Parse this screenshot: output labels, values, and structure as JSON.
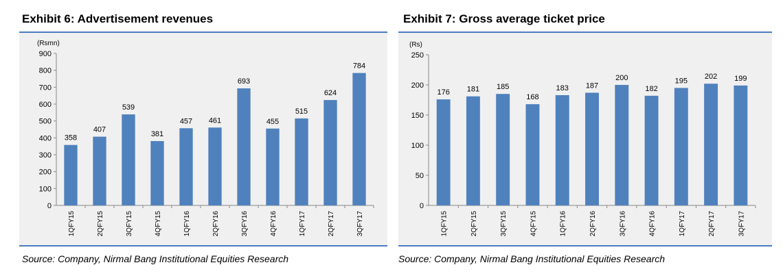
{
  "chart_data": [
    {
      "type": "bar",
      "title": "Exhibit 6: Advertisement revenues",
      "ylabel": "(Rsmn)",
      "xlabel": "",
      "ylim": [
        0,
        900
      ],
      "yticks": [
        0,
        100,
        200,
        300,
        400,
        500,
        600,
        700,
        800,
        900
      ],
      "categories": [
        "1QFY15",
        "2QFY15",
        "3QFY15",
        "4QFY15",
        "1QFY16",
        "2QFY16",
        "3QFY16",
        "4QFY16",
        "1QFY17",
        "2QFY17",
        "3QFY17"
      ],
      "values": [
        358,
        407,
        539,
        381,
        457,
        461,
        693,
        455,
        515,
        624,
        784
      ],
      "bar_color": "#4f81bd",
      "source": "Source: Company, Nirmal Bang Institutional Equities Research"
    },
    {
      "type": "bar",
      "title": "Exhibit 7: Gross average ticket price",
      "ylabel": "(Rs)",
      "xlabel": "",
      "ylim": [
        0,
        250
      ],
      "yticks": [
        0,
        50,
        100,
        150,
        200,
        250
      ],
      "categories": [
        "1QFY15",
        "2QFY15",
        "3QFY15",
        "4QFY15",
        "1QFY16",
        "2QFY16",
        "3QFY16",
        "4QFY16",
        "1QFY17",
        "2QFY17",
        "3QFY17"
      ],
      "values": [
        176,
        181,
        185,
        168,
        183,
        187,
        200,
        182,
        195,
        202,
        199
      ],
      "bar_color": "#4f81bd",
      "source": "Source: Company, Nirmal Bang Institutional Equities Research"
    }
  ]
}
